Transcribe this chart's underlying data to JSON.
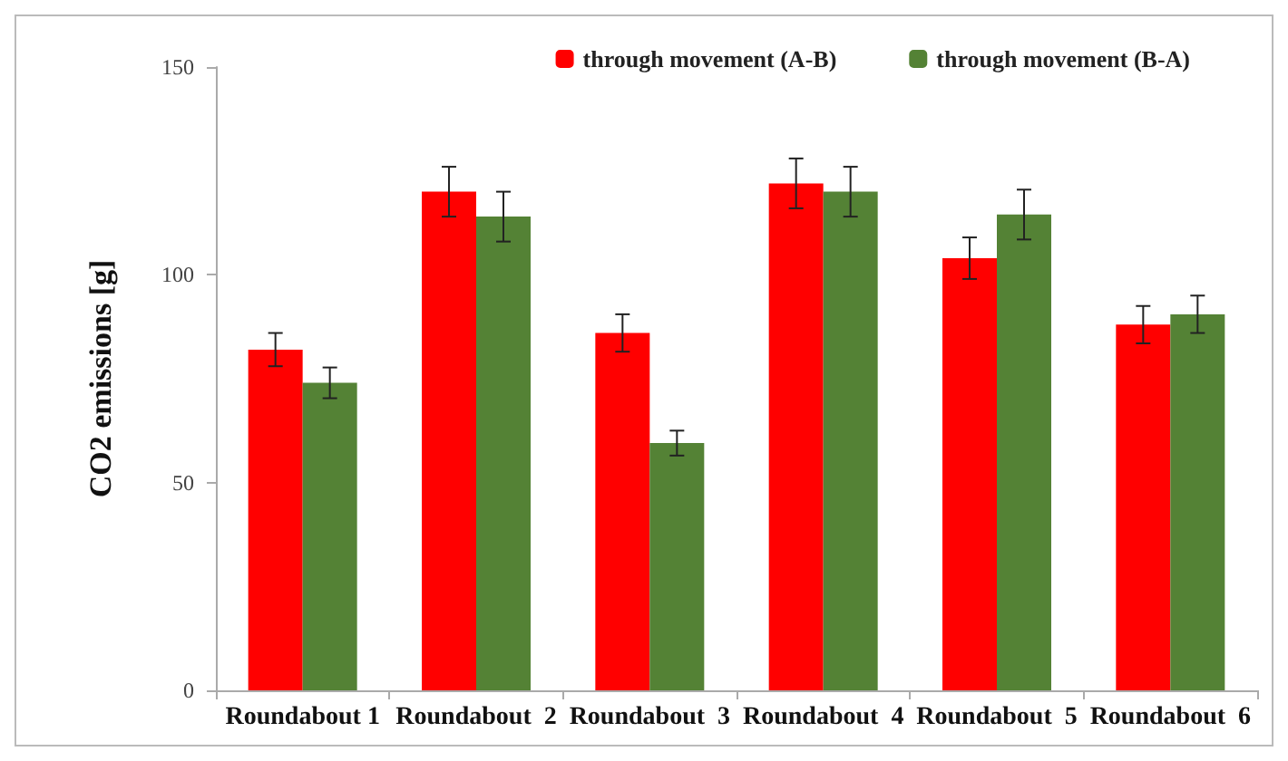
{
  "chart_data": {
    "type": "bar",
    "ylabel": "CO2 emissions [g]",
    "categories": [
      "Roundabout 1",
      "Roundabout  2",
      "Roundabout  3",
      "Roundabout  4",
      "Roundabout  5",
      "Roundabout  6"
    ],
    "series": [
      {
        "name": "through movement (A-B)",
        "color": "#ff0000",
        "values": [
          82,
          120,
          86,
          122,
          104,
          88
        ],
        "errors": [
          4,
          6,
          4.5,
          6,
          5,
          4.5
        ]
      },
      {
        "name": "through movement (B-A)",
        "color": "#548235",
        "values": [
          74,
          114,
          59.5,
          120,
          114.5,
          90.5
        ],
        "errors": [
          3.7,
          6,
          3,
          6,
          6,
          4.5
        ]
      }
    ],
    "ylim": [
      0,
      150
    ],
    "yticks": [
      0,
      50,
      100,
      150
    ],
    "grid": false,
    "legend": "top right"
  }
}
